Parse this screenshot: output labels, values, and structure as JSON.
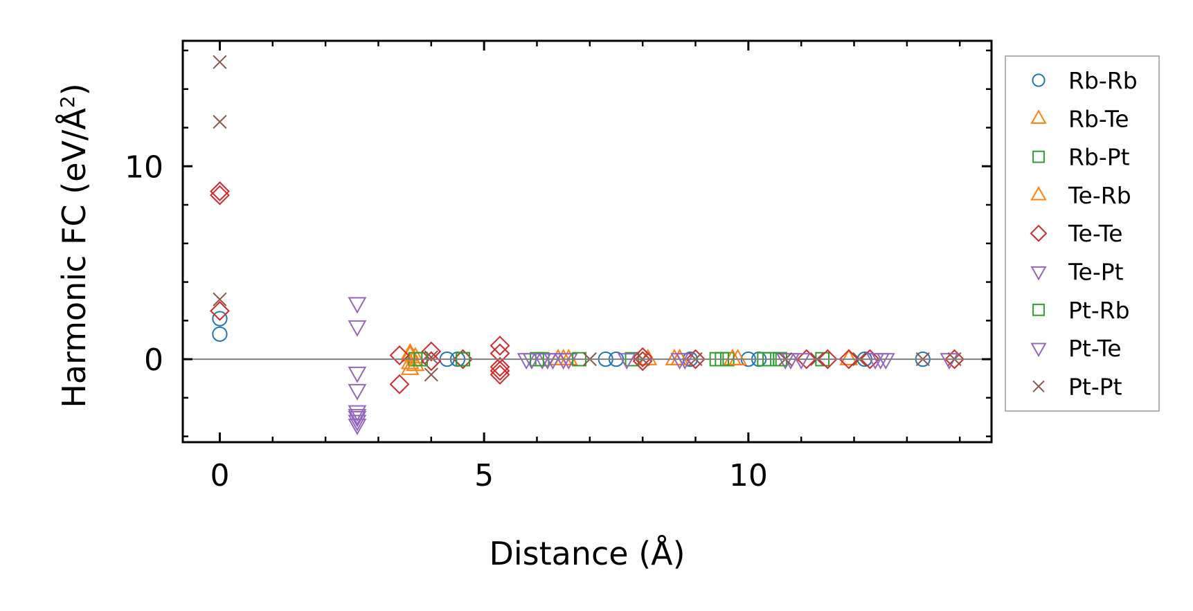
{
  "chart_data": {
    "type": "scatter",
    "title": "",
    "xlabel": "Distance (Å)",
    "ylabel": "Harmonic FC (eV/Å",
    "ylabel_superscript": "2",
    "ylabel_close": ")",
    "xlim": [
      -0.7,
      14.6
    ],
    "ylim": [
      -4.3,
      16.5
    ],
    "x_major_ticks": [
      0,
      5,
      10
    ],
    "x_tick_labels": [
      "0",
      "5",
      "10"
    ],
    "x_minor_ticks": [
      1,
      2,
      3,
      4,
      6,
      7,
      8,
      9,
      11,
      12,
      13,
      14
    ],
    "y_major_ticks": [
      0,
      10
    ],
    "y_tick_labels": [
      "0",
      "10"
    ],
    "y_minor_ticks": [
      -4,
      -2,
      2,
      4,
      6,
      8,
      12,
      14,
      16
    ],
    "reference_line_y": 0,
    "legend_position": "right-outside",
    "series": [
      {
        "name": "Rb-Rb",
        "marker": "circle",
        "color": "#1f77b4",
        "points": [
          [
            0,
            2.1
          ],
          [
            0,
            1.3
          ],
          [
            4.3,
            0
          ],
          [
            4.5,
            0
          ],
          [
            7.3,
            0
          ],
          [
            7.5,
            0
          ],
          [
            8.9,
            0
          ],
          [
            10.0,
            0
          ],
          [
            10.2,
            0
          ],
          [
            12.2,
            0
          ],
          [
            13.3,
            0
          ]
        ]
      },
      {
        "name": "Rb-Te",
        "marker": "triangle-up",
        "color": "#ff7f0e",
        "points": [
          [
            3.6,
            0.3
          ],
          [
            3.6,
            -0.2
          ],
          [
            3.6,
            -0.5
          ],
          [
            3.7,
            0.1
          ],
          [
            6.4,
            0
          ],
          [
            6.6,
            0
          ],
          [
            8.1,
            0
          ],
          [
            8.6,
            0
          ],
          [
            8.7,
            0
          ],
          [
            9.8,
            0
          ],
          [
            11.9,
            0
          ]
        ]
      },
      {
        "name": "Rb-Pt",
        "marker": "square",
        "color": "#2ca02c",
        "points": [
          [
            3.7,
            0
          ],
          [
            3.8,
            0
          ],
          [
            4.6,
            0
          ],
          [
            6.1,
            0
          ],
          [
            7.8,
            0
          ],
          [
            9.4,
            0
          ],
          [
            9.6,
            0
          ],
          [
            10.3,
            0
          ],
          [
            10.6,
            0
          ],
          [
            11.4,
            0
          ]
        ]
      },
      {
        "name": "Te-Rb",
        "marker": "triangle-up",
        "color": "#ff7f0e",
        "points": [
          [
            3.6,
            0.2
          ],
          [
            3.7,
            -0.3
          ],
          [
            6.5,
            0
          ],
          [
            8.7,
            0
          ],
          [
            9.7,
            0
          ]
        ]
      },
      {
        "name": "Te-Te",
        "marker": "diamond",
        "color": "#d62728",
        "points": [
          [
            0,
            8.7
          ],
          [
            0,
            8.5
          ],
          [
            0,
            2.5
          ],
          [
            3.4,
            0.2
          ],
          [
            3.4,
            -1.3
          ],
          [
            4.0,
            0.4
          ],
          [
            4.0,
            -0.1
          ],
          [
            4.6,
            0
          ],
          [
            5.3,
            0.7
          ],
          [
            5.3,
            0.3
          ],
          [
            5.3,
            -0.6
          ],
          [
            5.3,
            -0.8
          ],
          [
            5.3,
            -0.4
          ],
          [
            8.0,
            0.1
          ],
          [
            8.0,
            -0.1
          ],
          [
            9.0,
            0
          ],
          [
            11.1,
            0
          ],
          [
            11.5,
            0
          ],
          [
            11.9,
            0
          ],
          [
            12.3,
            0
          ],
          [
            13.9,
            0
          ]
        ]
      },
      {
        "name": "Te-Pt",
        "marker": "triangle-down",
        "color": "#9467bd",
        "points": [
          [
            2.6,
            2.9
          ],
          [
            2.6,
            1.7
          ],
          [
            2.6,
            -0.7
          ],
          [
            2.6,
            -1.6
          ],
          [
            2.6,
            -2.7
          ],
          [
            2.6,
            -3.0
          ],
          [
            2.6,
            -3.2
          ],
          [
            2.6,
            -3.4
          ],
          [
            5.8,
            0
          ],
          [
            6.1,
            0
          ],
          [
            6.2,
            0
          ],
          [
            6.5,
            0
          ],
          [
            6.6,
            0
          ],
          [
            7.7,
            0
          ],
          [
            8.7,
            0
          ],
          [
            10.7,
            0
          ],
          [
            11.0,
            0
          ],
          [
            12.4,
            0
          ],
          [
            12.6,
            0
          ],
          [
            13.8,
            0
          ]
        ]
      },
      {
        "name": "Pt-Rb",
        "marker": "square",
        "color": "#2ca02c",
        "points": [
          [
            3.8,
            0
          ],
          [
            4.6,
            0
          ],
          [
            6.0,
            0
          ],
          [
            6.8,
            0
          ],
          [
            9.5,
            0
          ],
          [
            10.4,
            0
          ],
          [
            10.6,
            0
          ]
        ]
      },
      {
        "name": "Pt-Te",
        "marker": "triangle-down",
        "color": "#9467bd",
        "points": [
          [
            2.6,
            -2.9
          ],
          [
            5.9,
            0
          ],
          [
            6.3,
            0
          ],
          [
            8.8,
            0
          ],
          [
            10.8,
            0
          ],
          [
            12.5,
            0
          ]
        ]
      },
      {
        "name": "Pt-Pt",
        "marker": "x",
        "color": "#8c564b",
        "points": [
          [
            0,
            15.4
          ],
          [
            0,
            12.3
          ],
          [
            0,
            3.1
          ],
          [
            4.0,
            -0.8
          ],
          [
            4.0,
            0.1
          ],
          [
            7.0,
            0
          ],
          [
            8.0,
            0
          ],
          [
            9.0,
            0
          ],
          [
            10.7,
            0
          ],
          [
            11.3,
            0
          ],
          [
            12.1,
            0
          ],
          [
            13.3,
            0
          ],
          [
            13.9,
            0
          ]
        ]
      }
    ]
  }
}
